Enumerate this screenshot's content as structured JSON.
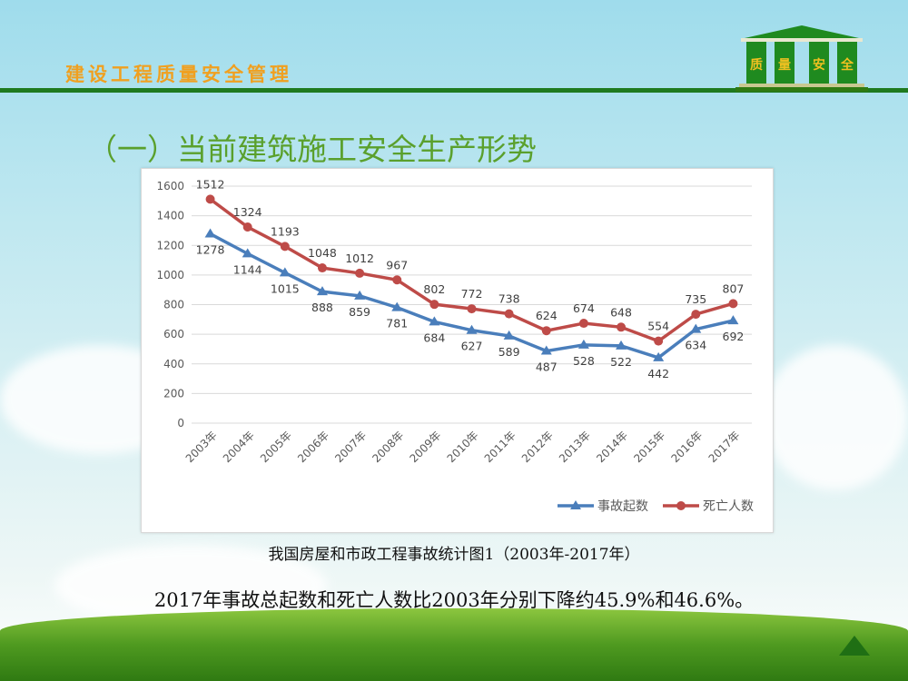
{
  "header": {
    "title": "建设工程质量安全管理",
    "logo_text": [
      "质",
      "量",
      "安",
      "全"
    ]
  },
  "slide_title": "（一）当前建筑施工安全生产形势",
  "caption": "我国房屋和市政工程事故统计图1（2003年-2017年）",
  "summary": "2017年事故总起数和死亡人数比2003年分别下降约45.9%和46.6%。",
  "nav": {
    "icon": "triangle-up-icon"
  },
  "chart_data": {
    "type": "line",
    "categories": [
      "2003年",
      "2004年",
      "2005年",
      "2006年",
      "2007年",
      "2008年",
      "2009年",
      "2010年",
      "2011年",
      "2012年",
      "2013年",
      "2014年",
      "2015年",
      "2016年",
      "2017年"
    ],
    "series": [
      {
        "name": "事故起数",
        "color": "#4a7ebb",
        "marker": "triangle",
        "values": [
          1278,
          1144,
          1015,
          888,
          859,
          781,
          684,
          627,
          589,
          487,
          528,
          522,
          442,
          634,
          692
        ]
      },
      {
        "name": "死亡人数",
        "color": "#be4b48",
        "marker": "circle",
        "values": [
          1512,
          1324,
          1193,
          1048,
          1012,
          967,
          802,
          772,
          738,
          624,
          674,
          648,
          554,
          735,
          807
        ]
      }
    ],
    "ylim": [
      0,
      1600
    ],
    "yticks": [
      0,
      200,
      400,
      600,
      800,
      1000,
      1200,
      1400,
      1600
    ],
    "grid": true,
    "legend": "bottom-right"
  }
}
